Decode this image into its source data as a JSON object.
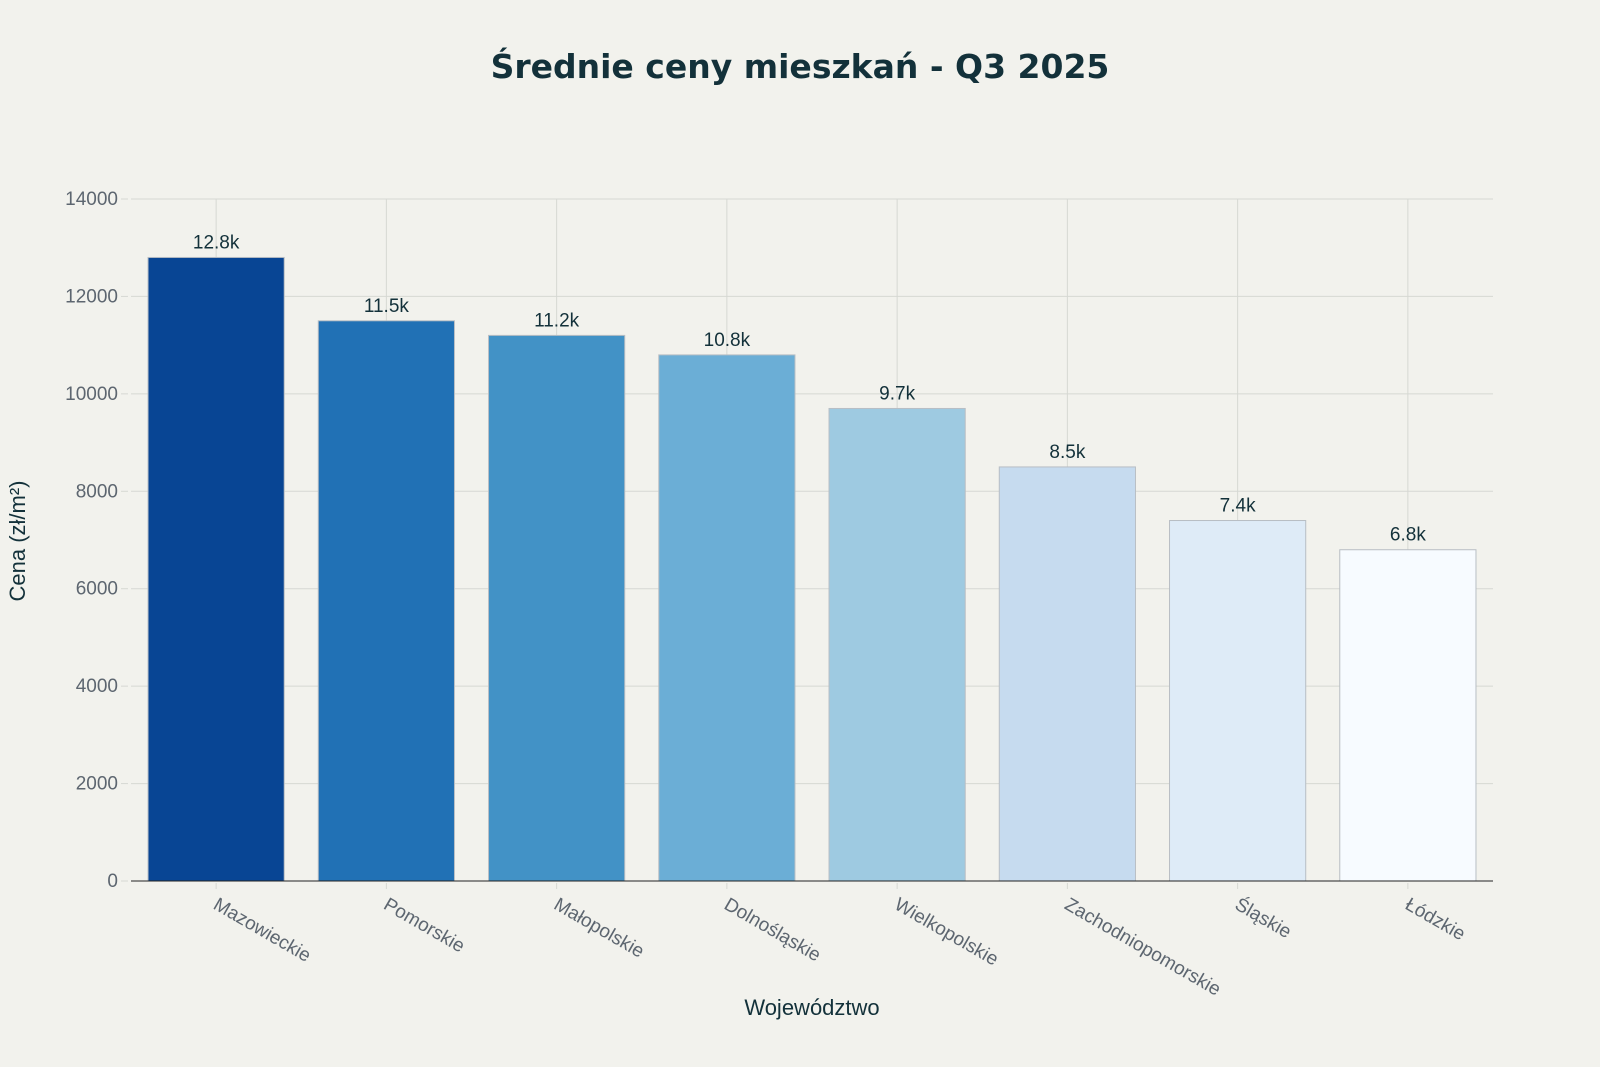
{
  "chart_data": {
    "type": "bar",
    "title": "Średnie ceny mieszkań - Q3 2025",
    "xlabel": "Województwo",
    "ylabel": "Cena (zł/m²)",
    "categories": [
      "Mazowieckie",
      "Pomorskie",
      "Małopolskie",
      "Dolnośląskie",
      "Wielkopolskie",
      "Zachodniopomorskie",
      "Śląskie",
      "Łódzkie"
    ],
    "values": [
      12800,
      11500,
      11200,
      10800,
      9700,
      8500,
      7400,
      6800
    ],
    "data_labels": [
      "12.8k",
      "11.5k",
      "11.2k",
      "10.8k",
      "9.7k",
      "8.5k",
      "7.4k",
      "6.8k"
    ],
    "colors": [
      "#084594",
      "#2171b5",
      "#4292c6",
      "#6baed6",
      "#9ecae1",
      "#c6dbef",
      "#deebf7",
      "#f7fbff"
    ],
    "ylim": [
      0,
      14000
    ],
    "yticks": [
      "0",
      "2000",
      "4000",
      "6000",
      "8000",
      "10000",
      "12000",
      "14000"
    ],
    "grid": true,
    "legend": "none"
  }
}
